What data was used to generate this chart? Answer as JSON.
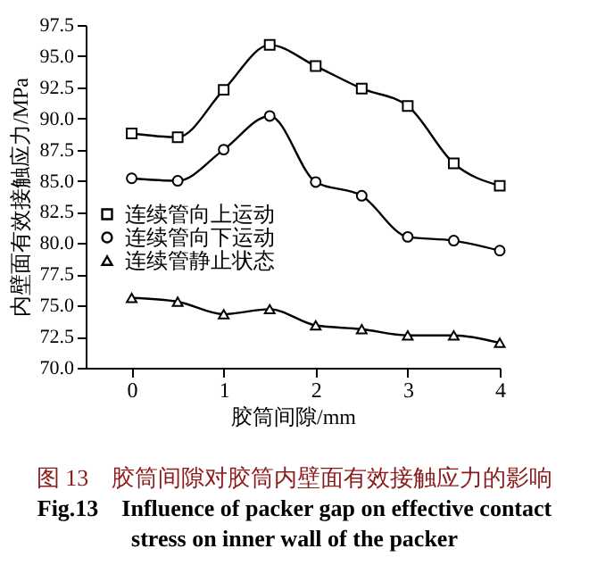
{
  "chart_data": {
    "type": "line",
    "x": [
      0,
      0.5,
      1,
      1.5,
      2,
      2.5,
      3,
      3.5,
      4
    ],
    "series": [
      {
        "name": "连续管向上运动",
        "color": "#000000",
        "marker": "square",
        "values": [
          88.8,
          88.5,
          92.3,
          95.9,
          94.2,
          92.4,
          91.0,
          86.4,
          84.6
        ]
      },
      {
        "name": "连续管向下运动",
        "color": "#000000",
        "marker": "circle",
        "values": [
          85.2,
          85.0,
          87.5,
          90.2,
          84.9,
          83.8,
          80.5,
          80.2,
          79.4
        ]
      },
      {
        "name": "连续管静止状态",
        "color": "#000000",
        "marker": "triangle",
        "values": [
          75.6,
          75.3,
          74.3,
          74.7,
          73.4,
          73.1,
          72.6,
          72.6,
          72.0
        ]
      }
    ],
    "xlabel": "胶筒间隙/mm",
    "ylabel": "内壁面有效接触应力/MPa",
    "xlim": [
      -0.5,
      4
    ],
    "xticks": [
      0,
      1,
      2,
      3,
      4
    ],
    "ylim": [
      70,
      97.5
    ],
    "yticks": [
      {
        "value": 70,
        "label": "70.0"
      },
      {
        "value": 72.5,
        "label": "72.5"
      },
      {
        "value": 75,
        "label": "75.0"
      },
      {
        "value": 77.5,
        "label": "77.5"
      },
      {
        "value": 80,
        "label": "80.0"
      },
      {
        "value": 82.5,
        "label": "82.5"
      },
      {
        "value": 85,
        "label": "85.0"
      },
      {
        "value": 87.5,
        "label": "87.5"
      },
      {
        "value": 90,
        "label": "90.0"
      },
      {
        "value": 92.5,
        "label": "92.5"
      },
      {
        "value": 95,
        "label": "95.0"
      },
      {
        "value": 97.5,
        "label": "97.5"
      }
    ],
    "grid": false,
    "legend": "bottom left",
    "line_style": "solid",
    "annotations": [
      "图 13　胶筒间隙对胶筒内壁面有效接触应力的影响",
      "Fig.13　Influence of packer gap on effective contact stress on inner wall of the packer"
    ]
  }
}
